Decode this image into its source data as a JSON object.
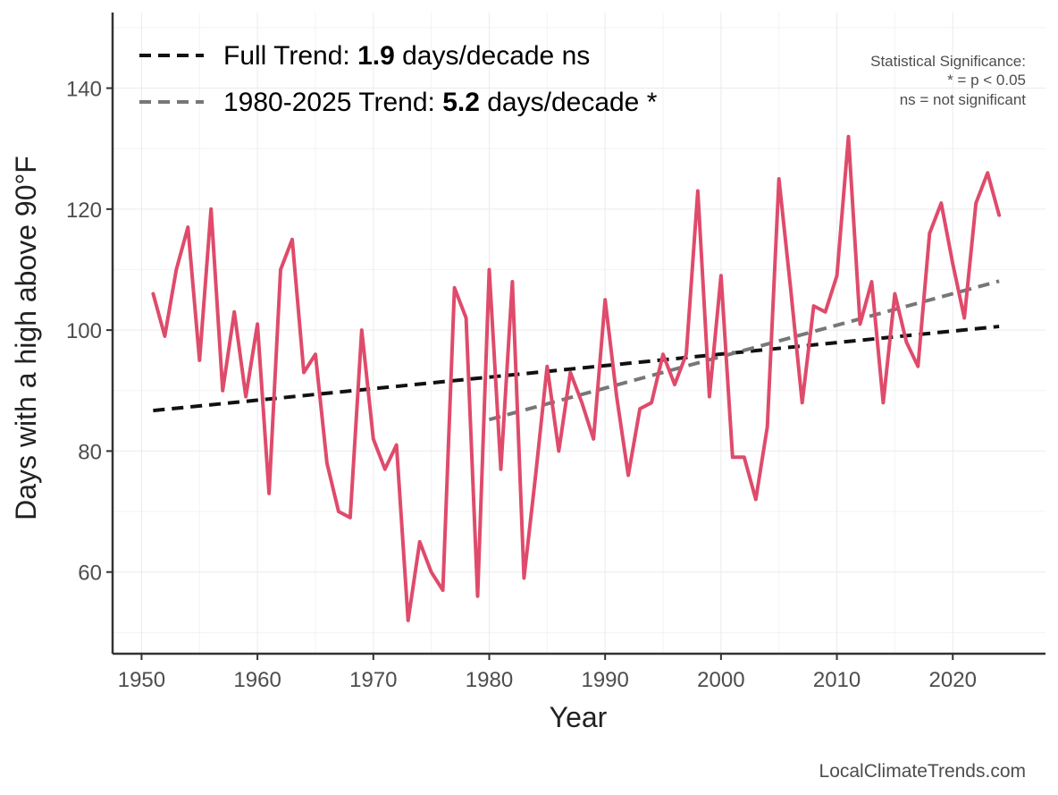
{
  "chart_data": {
    "type": "line",
    "xlabel": "Year",
    "ylabel": "Days with a high above 90°F",
    "xlim": [
      1947.5,
      2028
    ],
    "ylim": [
      46.5,
      152.5
    ],
    "x_ticks": [
      1950,
      1960,
      1970,
      1980,
      1990,
      2000,
      2010,
      2020
    ],
    "y_ticks": [
      60,
      80,
      100,
      120,
      140
    ],
    "grid": true,
    "series": [
      {
        "name": "Days above 90°F",
        "color": "#df4b6b",
        "x": [
          1951,
          1952,
          1953,
          1954,
          1955,
          1956,
          1957,
          1958,
          1959,
          1960,
          1961,
          1962,
          1963,
          1964,
          1965,
          1966,
          1967,
          1968,
          1969,
          1970,
          1971,
          1972,
          1973,
          1974,
          1975,
          1976,
          1977,
          1978,
          1979,
          1980,
          1981,
          1982,
          1983,
          1984,
          1985,
          1986,
          1987,
          1988,
          1989,
          1990,
          1991,
          1992,
          1993,
          1994,
          1995,
          1996,
          1997,
          1998,
          1999,
          2000,
          2001,
          2002,
          2003,
          2004,
          2005,
          2006,
          2007,
          2008,
          2009,
          2010,
          2011,
          2012,
          2013,
          2014,
          2015,
          2016,
          2017,
          2018,
          2019,
          2020,
          2021,
          2022,
          2023,
          2024
        ],
        "values": [
          106,
          99,
          110,
          117,
          95,
          120,
          90,
          103,
          89,
          101,
          73,
          110,
          115,
          93,
          96,
          78,
          70,
          69,
          100,
          82,
          77,
          81,
          52,
          65,
          60,
          57,
          107,
          102,
          56,
          110,
          77,
          108,
          59,
          76,
          94,
          80,
          93,
          88,
          82,
          105,
          89,
          76,
          87,
          88,
          96,
          91,
          96,
          123,
          89,
          109,
          79,
          79,
          72,
          84,
          125,
          107,
          88,
          104,
          103,
          109,
          132,
          101,
          108,
          88,
          106,
          98,
          94,
          116,
          121,
          111,
          102,
          121,
          126,
          119
        ]
      }
    ],
    "trend_lines": [
      {
        "name": "Full Trend",
        "color": "#111111",
        "x": [
          1951,
          2024
        ],
        "y": [
          86.7,
          100.6
        ]
      },
      {
        "name": "1980-2025 Trend",
        "color": "#777777",
        "x": [
          1980,
          2024
        ],
        "y": [
          85.2,
          108.1
        ]
      }
    ]
  },
  "legend": {
    "items": [
      {
        "prefix": "Full Trend: ",
        "value": "1.9",
        "suffix": " days/decade ns",
        "color": "#111111"
      },
      {
        "prefix": "1980-2025 Trend: ",
        "value": "5.2",
        "suffix": " days/decade *",
        "color": "#777777"
      }
    ]
  },
  "significance_note": {
    "title": "Statistical Significance:",
    "line1": "* = p < 0.05",
    "line2": "ns = not significant"
  },
  "source": "LocalClimateTrends.com"
}
